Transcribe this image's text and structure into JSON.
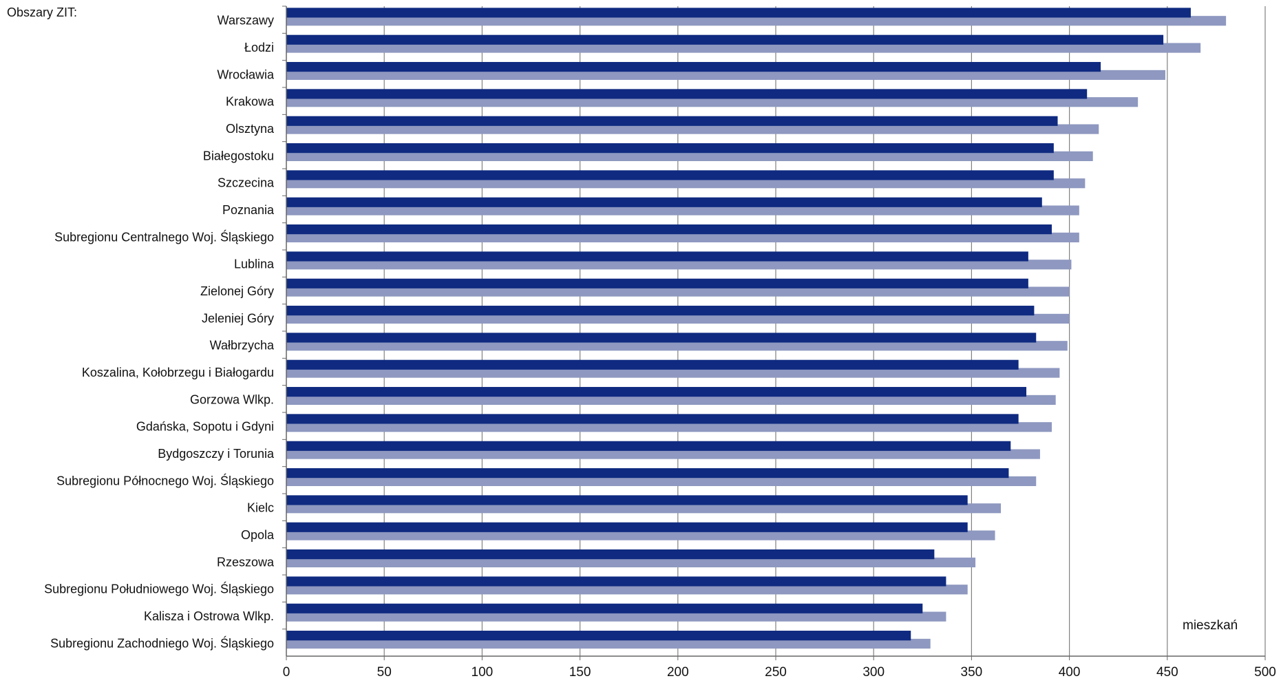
{
  "chart_data": {
    "type": "bar",
    "orientation": "horizontal",
    "corner_label": "Obszary ZIT:",
    "unit_label": "mieszkań",
    "xlim": [
      0,
      500
    ],
    "xticks": [
      "0",
      "50",
      "100",
      "150",
      "200",
      "250",
      "300",
      "350",
      "400",
      "450",
      "500"
    ],
    "grid": true,
    "colors": {
      "series_dark": "#0f2a80",
      "series_light": "#8e98c0",
      "grid": "#808080"
    },
    "categories": [
      "Warszawy",
      "Łodzi",
      "Wrocławia",
      "Krakowa",
      "Olsztyna",
      "Białegostoku",
      "Szczecina",
      "Poznania",
      "Subregionu Centralnego Woj. Śląskiego",
      "Lublina",
      "Zielonej Góry",
      "Jeleniej Góry",
      "Wałbrzycha",
      "Koszalina, Kołobrzegu i Białogardu",
      "Gorzowa Wlkp.",
      "Gdańska, Sopotu i Gdyni",
      "Bydgoszczy i Torunia",
      "Subregionu Północnego Woj. Śląskiego",
      "Kielc",
      "Opola",
      "Rzeszowa",
      "Subregionu Południowego Woj. Śląskiego",
      "Kalisza i Ostrowa Wlkp.",
      "Subregionu Zachodniego Woj. Śląskiego"
    ],
    "series": [
      {
        "values": [
          462,
          448,
          416,
          409,
          394,
          392,
          392,
          386,
          391,
          379,
          379,
          382,
          383,
          374,
          378,
          374,
          370,
          369,
          348,
          348,
          331,
          337,
          325,
          319
        ]
      },
      {
        "values": [
          480,
          467,
          449,
          435,
          415,
          412,
          408,
          405,
          405,
          401,
          400,
          400,
          399,
          395,
          393,
          391,
          385,
          383,
          365,
          362,
          352,
          348,
          337,
          329
        ]
      }
    ]
  }
}
